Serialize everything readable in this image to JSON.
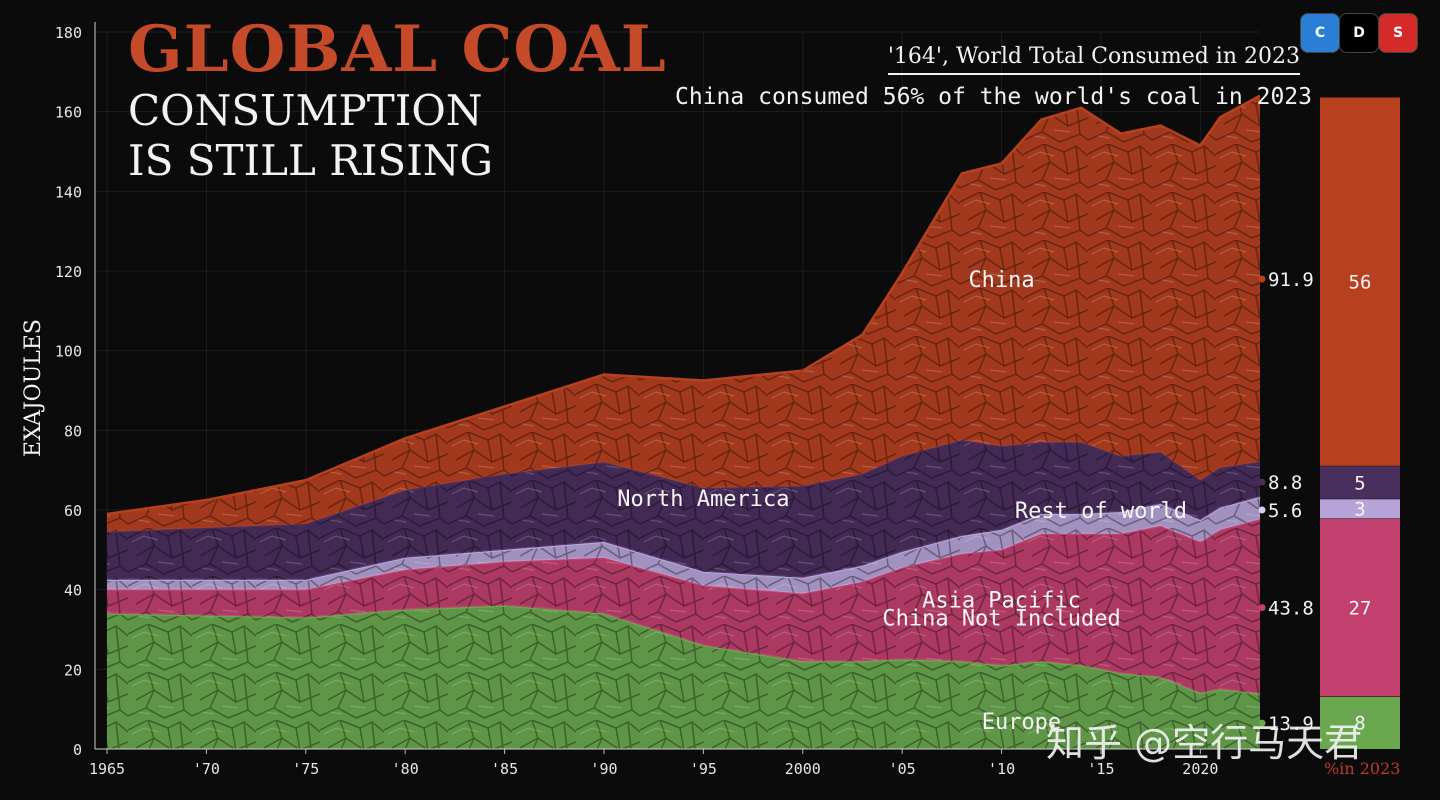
{
  "header": {
    "title": "GLOBAL COAL",
    "subtitle": "CONSUMPTION\nIS STILL RISING",
    "headline_total": "'164', World Total Consumed in 2023",
    "headline_share": "China consumed 56% of the world's coal in 2023"
  },
  "toolbar": {
    "buttons": [
      {
        "label": "C",
        "color": "#2a7fd4"
      },
      {
        "label": "D",
        "color": "#000000"
      },
      {
        "label": "S",
        "color": "#d42a2a"
      }
    ]
  },
  "watermark": "知乎 @空行马天君",
  "share_bar_caption": "%in 2023",
  "chart_data": {
    "type": "area",
    "stacked": true,
    "ylabel": "EXAJOULES",
    "ylim": [
      0,
      180
    ],
    "yticks": [
      0,
      20,
      40,
      60,
      80,
      100,
      120,
      140,
      160,
      180
    ],
    "xlim": [
      1965,
      2023
    ],
    "xticks": [
      1965,
      1970,
      1975,
      1980,
      1985,
      1990,
      1995,
      2000,
      2005,
      2010,
      2015,
      2020
    ],
    "xtick_labels": [
      "1965",
      "'70",
      "'75",
      "'80",
      "'85",
      "'90",
      "'95",
      "2000",
      "'05",
      "'10",
      "'15",
      "2020"
    ],
    "x": [
      1965,
      1970,
      1975,
      1980,
      1985,
      1990,
      1995,
      2000,
      2003,
      2005,
      2008,
      2010,
      2012,
      2014,
      2016,
      2018,
      2020,
      2021,
      2023
    ],
    "series": [
      {
        "name": "Europe",
        "color": "#6aa84f",
        "values": [
          34,
          33.5,
          33,
          35,
          36,
          34,
          26,
          22,
          22,
          22.5,
          22,
          21,
          22,
          21,
          19,
          18,
          14,
          15,
          13.9
        ]
      },
      {
        "name": "Asia Pacific China Not Included",
        "color": "#c2406e",
        "values": [
          6,
          6.5,
          7,
          10,
          11,
          14,
          15,
          17,
          20,
          23,
          27,
          29,
          32,
          33,
          35,
          38,
          38,
          40,
          43.8
        ]
      },
      {
        "name": "Rest of world",
        "color": "#b6a4d8",
        "values": [
          2.5,
          2.5,
          2.5,
          3,
          3,
          4,
          3.5,
          4,
          4,
          4,
          4.5,
          5,
          5,
          5,
          5.5,
          5.5,
          5.5,
          5.6,
          5.6
        ]
      },
      {
        "name": "North America",
        "color": "#4a2f5e",
        "values": [
          12,
          13,
          14,
          17,
          19,
          20,
          21,
          23,
          23,
          24,
          24,
          21,
          18,
          18,
          14,
          13,
          10,
          10,
          8.8
        ]
      },
      {
        "name": "China",
        "color": "#b7401f",
        "values": [
          4.5,
          7,
          11,
          13,
          17,
          22,
          27,
          29,
          35,
          46,
          67,
          71,
          81,
          84,
          81,
          82,
          84,
          88,
          91.9
        ]
      }
    ],
    "area_labels": [
      {
        "text": "China"
      },
      {
        "text": "North America"
      },
      {
        "text": "Rest of world"
      },
      {
        "text": "Asia Pacific"
      },
      {
        "text": "China Not Included"
      },
      {
        "text": "Europe"
      }
    ],
    "end_values": [
      {
        "series": "China",
        "value": "91.9"
      },
      {
        "series": "North America",
        "value": "8.8"
      },
      {
        "series": "Rest of world",
        "value": "5.6"
      },
      {
        "series": "Asia Pacific China Not Included",
        "value": "43.8"
      },
      {
        "series": "Europe",
        "value": "13.9"
      }
    ],
    "share_2023": [
      {
        "series": "China",
        "percent": 56
      },
      {
        "series": "North America",
        "percent": 5
      },
      {
        "series": "Rest of world",
        "percent": 3
      },
      {
        "series": "Asia Pacific China Not Included",
        "percent": 27
      },
      {
        "series": "Europe",
        "percent": 8
      }
    ]
  }
}
